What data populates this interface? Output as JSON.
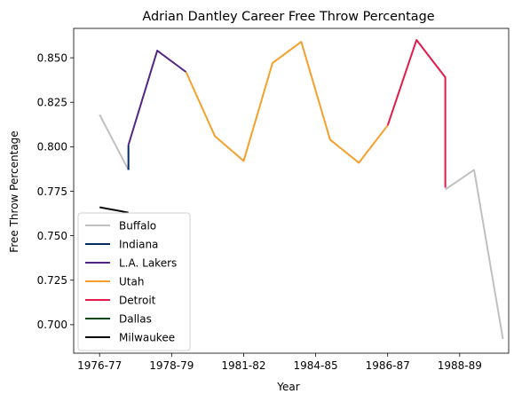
{
  "chart_data": {
    "type": "line",
    "title": "Adrian Dantley Career Free Throw Percentage",
    "xlabel": "Year",
    "ylabel": "Free Throw Percentage",
    "x_tick_labels": [
      {
        "x": 0,
        "label": "1976-77"
      },
      {
        "x": 2.5,
        "label": "1978-79"
      },
      {
        "x": 5,
        "label": "1981-82"
      },
      {
        "x": 7.5,
        "label": "1984-85"
      },
      {
        "x": 10,
        "label": "1986-87"
      },
      {
        "x": 12.5,
        "label": "1988-89"
      }
    ],
    "y_ticks": [
      0.7,
      0.725,
      0.75,
      0.775,
      0.8,
      0.825,
      0.85
    ],
    "y_tick_labels": [
      "0.700",
      "0.725",
      "0.750",
      "0.775",
      "0.800",
      "0.825",
      "0.850"
    ],
    "xlim": [
      -0.9,
      14.2
    ],
    "ylim": [
      0.684,
      0.8665
    ],
    "grid": false,
    "legend": "lower-left",
    "series": [
      {
        "name": "Buffalo",
        "color": "#c0c0c0",
        "points": [
          [
            0,
            0.818
          ],
          [
            1,
            0.787
          ]
        ]
      },
      {
        "name": "Indiana",
        "color": "#002d62",
        "points": [
          [
            1,
            0.801
          ],
          [
            1,
            0.787
          ]
        ]
      },
      {
        "name": "L.A. Lakers",
        "color": "#552583",
        "points": [
          [
            1,
            0.801
          ],
          [
            2,
            0.854
          ],
          [
            3,
            0.842
          ]
        ]
      },
      {
        "name": "Utah",
        "color": "#f6a02b",
        "points": [
          [
            3,
            0.842
          ],
          [
            4,
            0.806
          ],
          [
            5,
            0.792
          ],
          [
            6,
            0.847
          ],
          [
            7,
            0.859
          ],
          [
            8,
            0.804
          ],
          [
            9,
            0.791
          ],
          [
            10,
            0.812
          ]
        ]
      },
      {
        "name": "Detroit",
        "color": "#e31b4a",
        "points": [
          [
            10,
            0.812
          ],
          [
            11,
            0.86
          ],
          [
            12,
            0.839
          ],
          [
            12,
            0.777
          ]
        ]
      },
      {
        "name": "Dallas",
        "color": "#00471b",
        "points": []
      },
      {
        "name": "Milwaukee",
        "color": "#000000",
        "points": [
          [
            0,
            0.766
          ],
          [
            1,
            0.763
          ]
        ]
      },
      {
        "name": "Buffalo",
        "color": "#c0c0c0",
        "legend": false,
        "points": [
          [
            12,
            0.776
          ],
          [
            13,
            0.787
          ],
          [
            14,
            0.692
          ]
        ]
      }
    ]
  }
}
